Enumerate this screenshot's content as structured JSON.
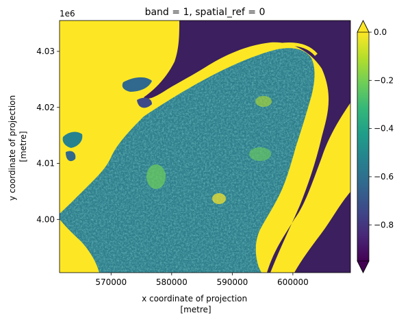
{
  "chart_data": {
    "type": "heatmap",
    "title": "band = 1, spatial_ref = 0",
    "xlabel_lines": [
      "x coordinate of projection",
      "[metre]"
    ],
    "ylabel_lines": [
      "y coordinate of projection",
      "[metre]"
    ],
    "y_offset_label": "1e6",
    "x_ticks": [
      {
        "value": 570000,
        "label": "570000"
      },
      {
        "value": 580000,
        "label": "580000"
      },
      {
        "value": 590000,
        "label": "590000"
      },
      {
        "value": 600000,
        "label": "600000"
      }
    ],
    "y_ticks": [
      {
        "value": 4000000,
        "label": "4.00"
      },
      {
        "value": 4010000,
        "label": "4.01"
      },
      {
        "value": 4020000,
        "label": "4.02"
      },
      {
        "value": 4030000,
        "label": "4.03"
      }
    ],
    "xlim": [
      561500,
      609500
    ],
    "ylim": [
      3990500,
      4035500
    ],
    "colorbar": {
      "colormap": "viridis",
      "range": [
        -0.95,
        0.0
      ],
      "extend": "both",
      "ticks": [
        {
          "value": 0.0,
          "label": "0.0"
        },
        {
          "value": -0.2,
          "label": "−0.2"
        },
        {
          "value": -0.4,
          "label": "−0.4"
        },
        {
          "value": -0.6,
          "label": "−0.6"
        },
        {
          "value": -0.8,
          "label": "−0.8"
        }
      ]
    },
    "colors": {
      "viridis": [
        "#440154",
        "#482878",
        "#3e4989",
        "#31688e",
        "#26828e",
        "#1f9e89",
        "#35b779",
        "#6ece58",
        "#b5de2b",
        "#fde725"
      ],
      "nodata_yellow": "#fde725",
      "dark_purple": "#3b1f5e",
      "land_mid": "#2e7d8c"
    }
  }
}
